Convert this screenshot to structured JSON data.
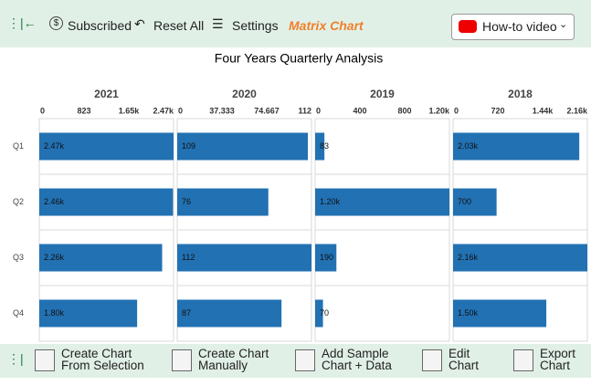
{
  "toolbar": {
    "subscribed": "Subscribed",
    "reset": "Reset All",
    "settings": "Settings",
    "brand": "Matrix Chart",
    "video": "How-to video"
  },
  "title": "Four Years Quarterly Analysis",
  "chart_data": [
    {
      "type": "bar",
      "orientation": "horizontal",
      "title": "2021",
      "color": "#2271b3",
      "categories": [
        "Q1",
        "Q2",
        "Q3",
        "Q4"
      ],
      "values": [
        2470,
        2460,
        2260,
        1800
      ],
      "value_labels": [
        "2.47k",
        "2.46k",
        "2.26k",
        "1.80k"
      ],
      "xlim": [
        0,
        2470
      ],
      "xticks": [
        0,
        {
          "value": 823.33,
          "label": "823"
        },
        {
          "value": 1646.67,
          "label": "1.65k"
        },
        {
          "value": 2470,
          "label": "2.47k"
        }
      ]
    },
    {
      "type": "bar",
      "orientation": "horizontal",
      "title": "2020",
      "color": "#2271b3",
      "values": [
        109,
        76,
        112,
        87
      ],
      "xlim": [
        0,
        112
      ],
      "xticks": [
        0,
        37.333,
        74.667,
        112
      ]
    },
    {
      "type": "bar",
      "orientation": "horizontal",
      "title": "2019",
      "color": "#2271b3",
      "values": [
        83,
        1200,
        190,
        70
      ],
      "value_labels": [
        "83",
        "1.20k",
        "190",
        "70"
      ],
      "xlim": [
        0,
        1200
      ],
      "xticks": [
        0,
        400,
        800,
        {
          "value": 1200,
          "label": "1.20k"
        }
      ]
    },
    {
      "type": "bar",
      "orientation": "horizontal",
      "title": "2018",
      "color": "#2271b3",
      "values": [
        2030,
        700,
        2160,
        1500
      ],
      "value_labels": [
        "2.03k",
        "700",
        "2.16k",
        "1.50k"
      ],
      "xlim": [
        0,
        2160
      ],
      "xticks": [
        0,
        720,
        {
          "value": 1440,
          "label": "1.44k"
        },
        {
          "value": 2160,
          "label": "2.16k"
        }
      ]
    }
  ],
  "footer": {
    "buttons": [
      [
        "Create Chart",
        "From Selection"
      ],
      [
        "Create Chart",
        "Manually"
      ],
      [
        "Add Sample",
        "Chart + Data"
      ],
      [
        "Edit",
        "Chart"
      ],
      [
        "Export",
        "Chart"
      ]
    ]
  }
}
